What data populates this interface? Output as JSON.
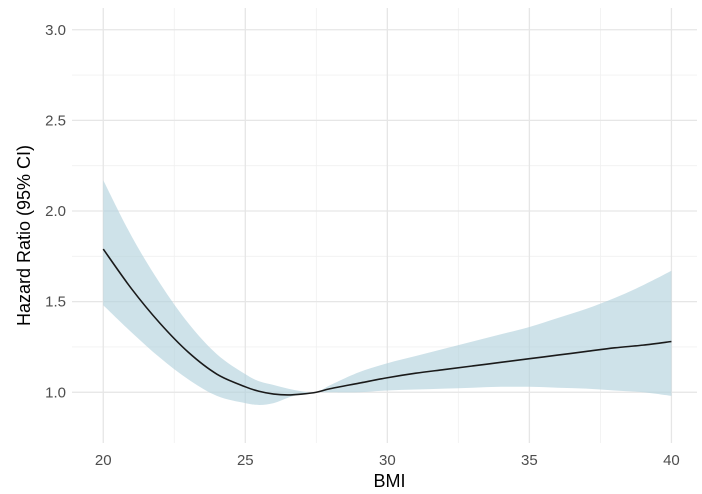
{
  "chart_data": {
    "type": "line",
    "xlabel": "BMI",
    "ylabel": "Hazard Ratio (95% CI)",
    "xlim": [
      18.9,
      40.9
    ],
    "ylim": [
      0.72,
      3.12
    ],
    "x_ticks": [
      20,
      25,
      30,
      35,
      40
    ],
    "x_tick_labels": [
      "20",
      "25",
      "30",
      "35",
      "40"
    ],
    "y_ticks": [
      1.0,
      1.5,
      2.0,
      2.5,
      3.0
    ],
    "y_tick_labels": [
      "1.0",
      "1.5",
      "2.0",
      "2.5",
      "3.0"
    ],
    "grid": true,
    "line_color": "#1a1a1a",
    "band_color": "#b0d0dc",
    "series": [
      {
        "x": [
          20,
          21,
          22,
          23,
          24,
          25,
          25.5,
          26,
          26.5,
          27,
          27.5,
          28,
          29,
          30,
          31,
          32,
          33,
          34,
          35,
          36,
          37,
          38,
          39,
          40
        ],
        "y": [
          1.79,
          1.57,
          1.38,
          1.22,
          1.1,
          1.03,
          1.005,
          0.99,
          0.985,
          0.99,
          1.0,
          1.02,
          1.05,
          1.08,
          1.105,
          1.125,
          1.145,
          1.165,
          1.185,
          1.205,
          1.225,
          1.245,
          1.26,
          1.28
        ],
        "lower": [
          1.48,
          1.33,
          1.19,
          1.07,
          0.98,
          0.94,
          0.93,
          0.94,
          0.97,
          0.99,
          1.0,
          1.0,
          1.0,
          1.01,
          1.015,
          1.02,
          1.025,
          1.03,
          1.03,
          1.025,
          1.02,
          1.01,
          1.0,
          0.98
        ],
        "upper": [
          2.17,
          1.86,
          1.6,
          1.38,
          1.21,
          1.1,
          1.06,
          1.04,
          1.02,
          1.005,
          1.0,
          1.04,
          1.11,
          1.16,
          1.2,
          1.24,
          1.28,
          1.32,
          1.36,
          1.41,
          1.46,
          1.52,
          1.59,
          1.67
        ]
      }
    ]
  }
}
